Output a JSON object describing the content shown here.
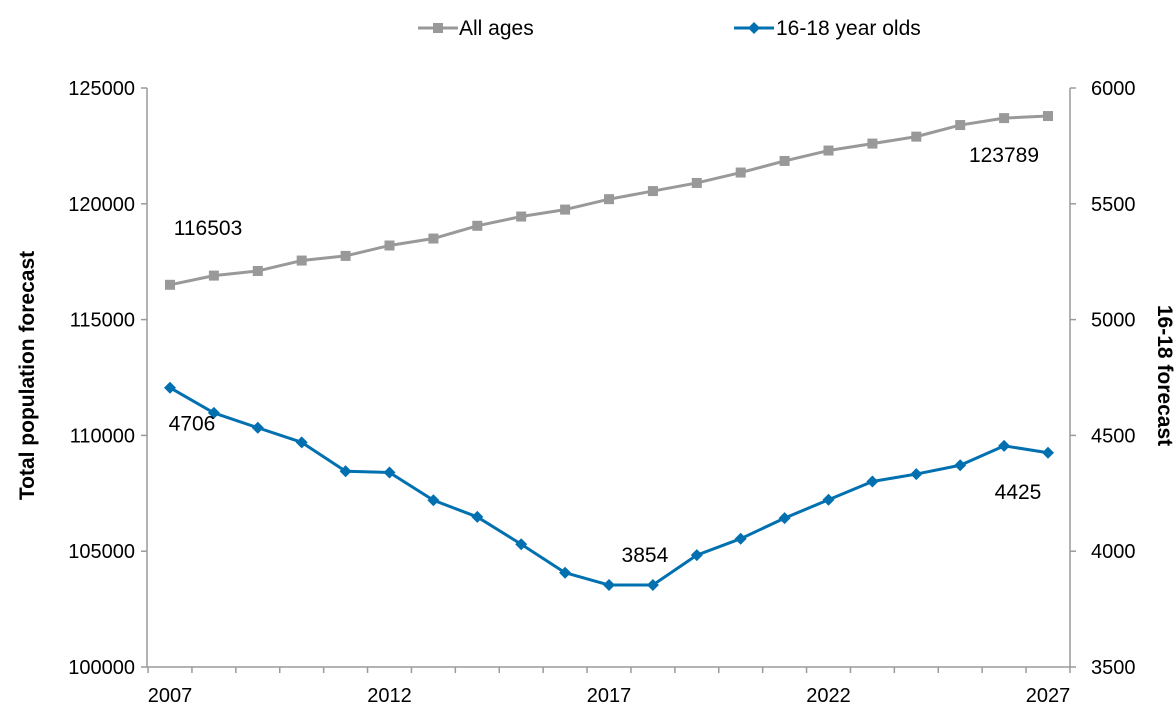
{
  "chart_data": {
    "type": "line",
    "x": [
      2007,
      2008,
      2009,
      2010,
      2011,
      2012,
      2013,
      2014,
      2015,
      2016,
      2017,
      2018,
      2019,
      2020,
      2021,
      2022,
      2023,
      2024,
      2025,
      2026,
      2027
    ],
    "x_tick_labels": [
      "2007",
      "2012",
      "2017",
      "2022",
      "2027"
    ],
    "series": [
      {
        "name": "All ages",
        "axis": "left",
        "color": "#999999",
        "marker": "square",
        "values": [
          116503,
          116900,
          117100,
          117550,
          117750,
          118200,
          118500,
          119050,
          119450,
          119750,
          120200,
          120550,
          120900,
          121350,
          121850,
          122300,
          122600,
          122900,
          123400,
          123700,
          123789
        ]
      },
      {
        "name": "16-18 year olds",
        "axis": "right",
        "color": "#0070b0",
        "marker": "diamond",
        "values": [
          4706,
          4597,
          4533,
          4470,
          4345,
          4340,
          4220,
          4148,
          4030,
          3907,
          3854,
          3854,
          3983,
          4054,
          4143,
          4222,
          4301,
          4333,
          4371,
          4455,
          4425
        ]
      }
    ],
    "y_left": {
      "label": "Total population forecast",
      "min": 100000,
      "max": 125000,
      "ticks": [
        "100000",
        "105000",
        "110000",
        "115000",
        "120000",
        "125000"
      ]
    },
    "y_right": {
      "label": "16-18 forecast",
      "min": 3500,
      "max": 6000,
      "ticks": [
        "3500",
        "4000",
        "4500",
        "5000",
        "5500",
        "6000"
      ]
    },
    "annotations": [
      {
        "text": "116503",
        "series": 0,
        "index": 0
      },
      {
        "text": "123789",
        "series": 0,
        "index": 20
      },
      {
        "text": "4706",
        "series": 1,
        "index": 0
      },
      {
        "text": "3854",
        "series": 1,
        "index": 11
      },
      {
        "text": "4425",
        "series": 1,
        "index": 20
      }
    ],
    "legend_position": "top",
    "grid": false
  }
}
